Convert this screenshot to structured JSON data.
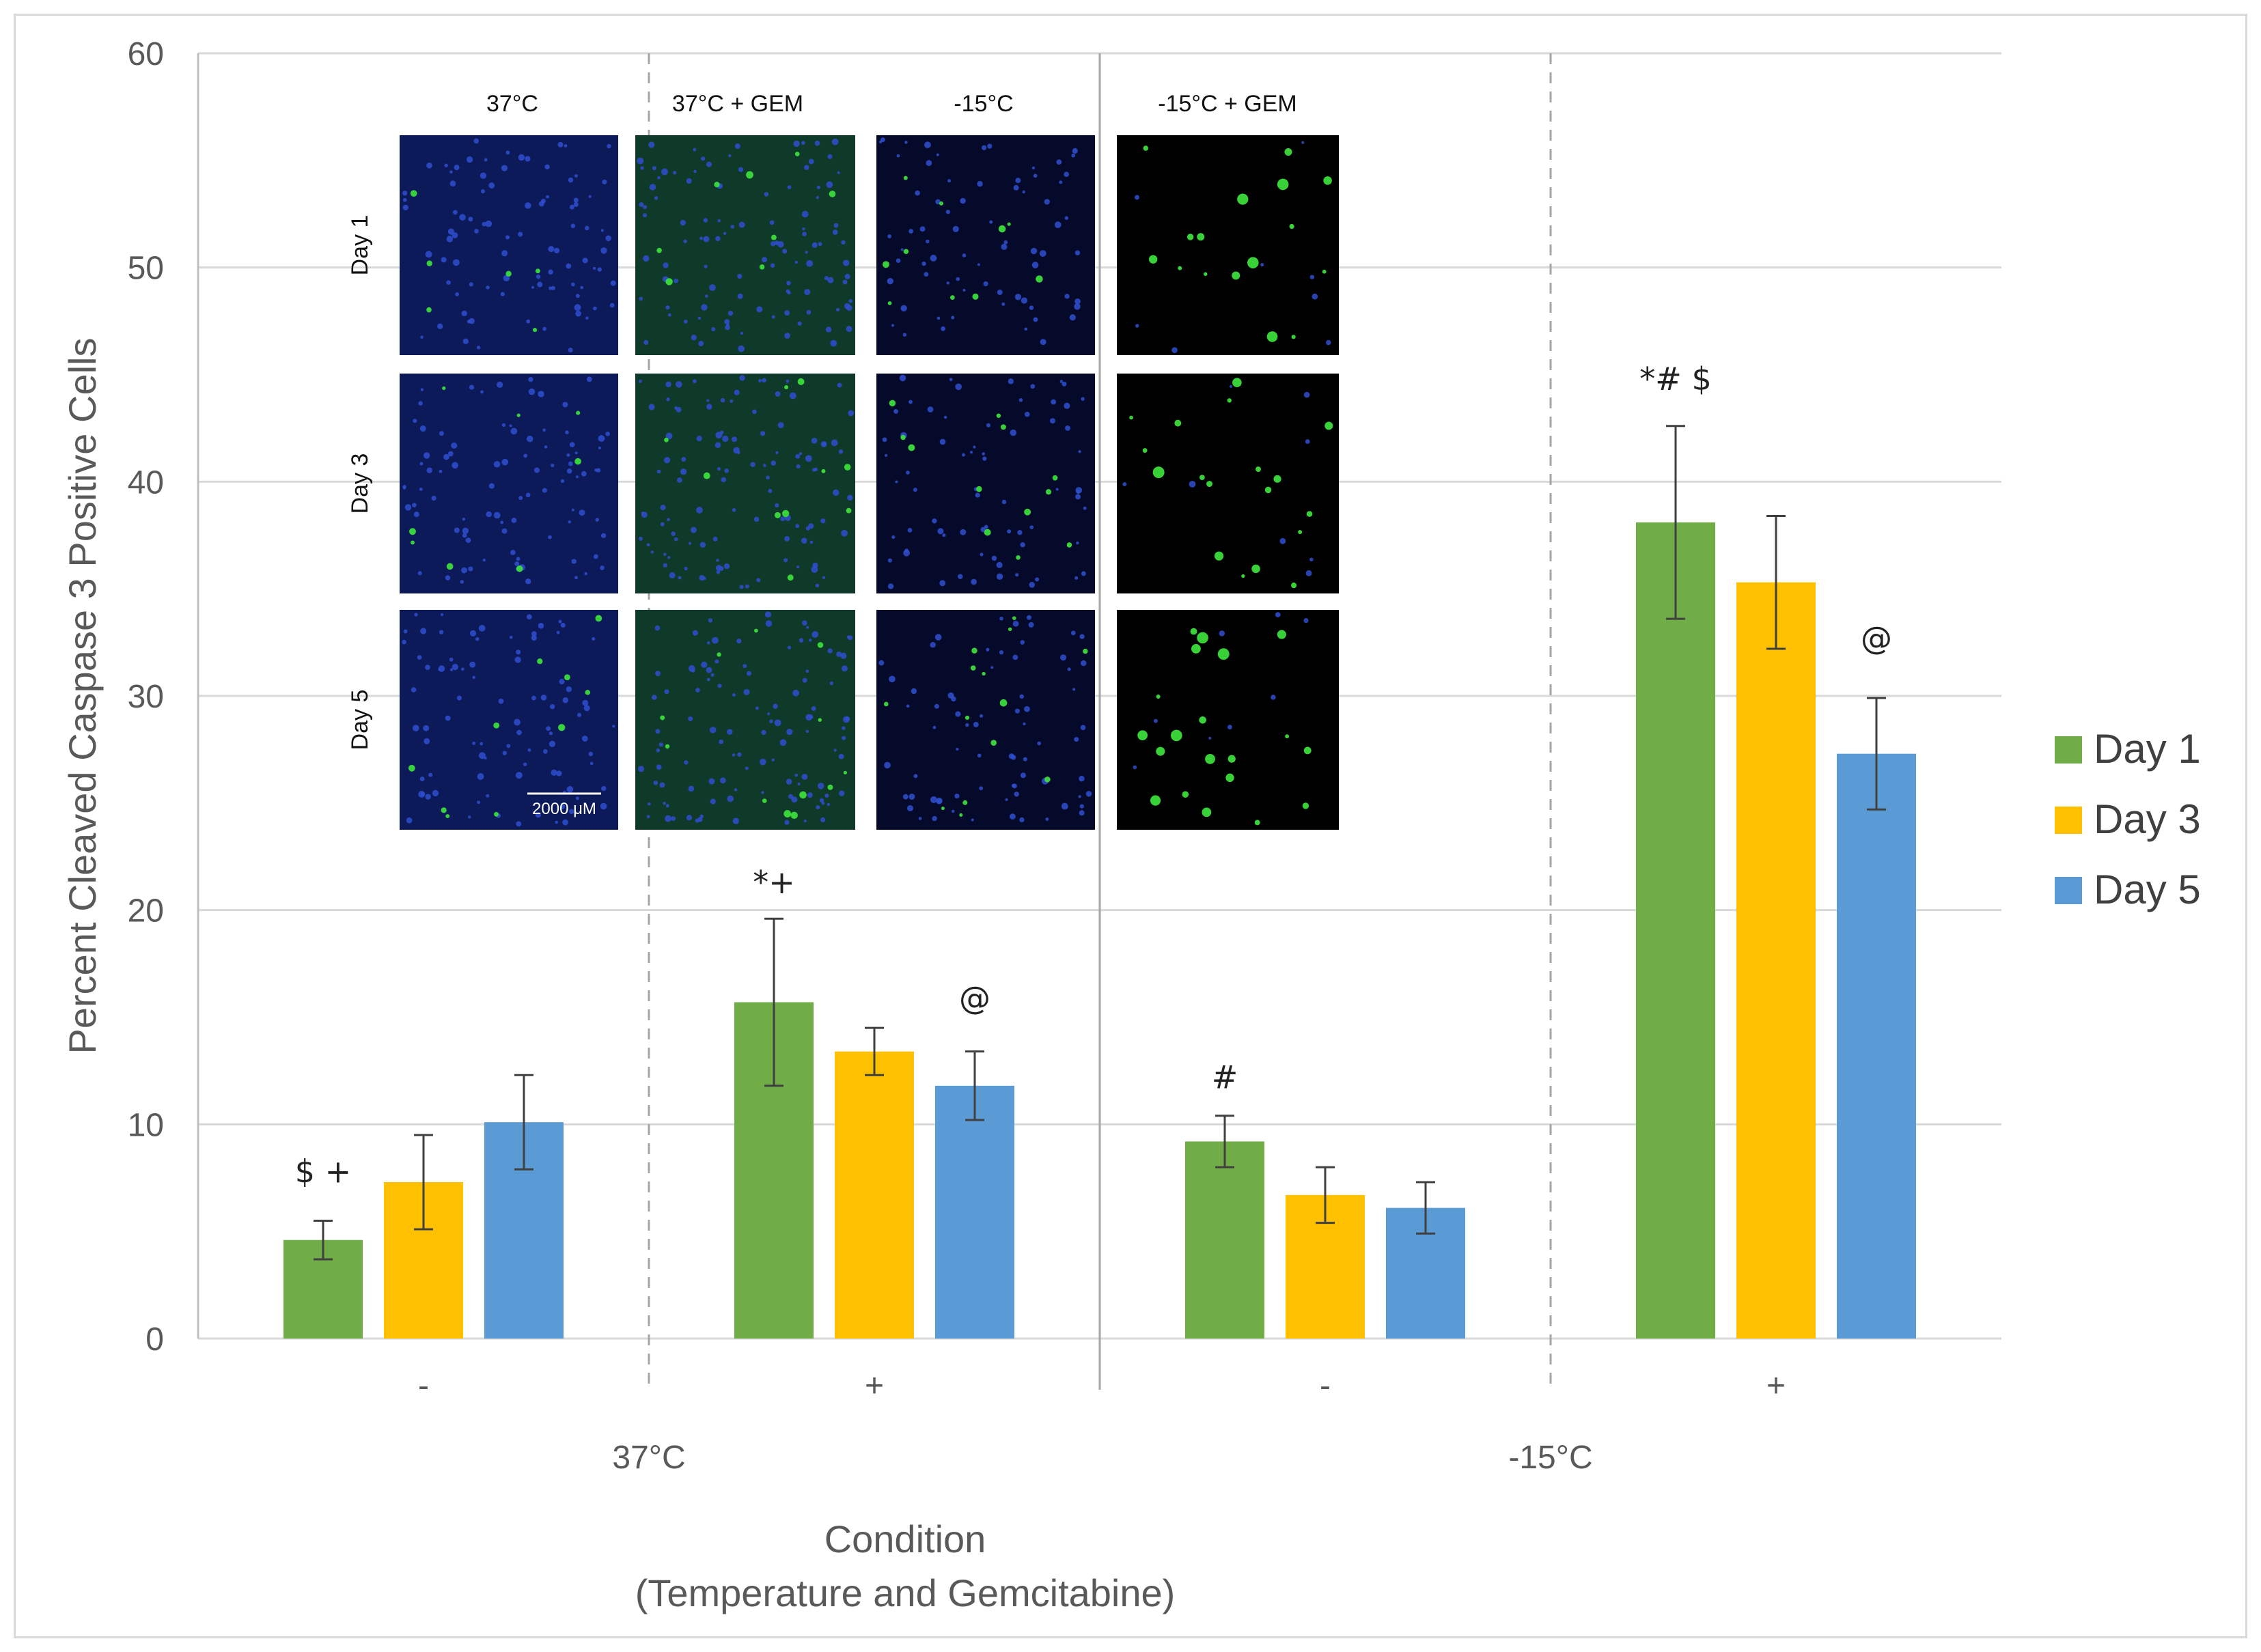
{
  "chart_data": {
    "type": "bar",
    "title": "",
    "ylabel": "Percent Cleaved Caspase 3 Positive Cells",
    "xlabel_line1": "Condition",
    "xlabel_line2": "(Temperature and Gemcitabine)",
    "ylim": [
      0,
      60
    ],
    "yticks": [
      0,
      10,
      20,
      30,
      40,
      50,
      60
    ],
    "grid": true,
    "legend_position": "right",
    "categories": [
      "-",
      "+",
      "-",
      "+"
    ],
    "group_labels": [
      "37°C",
      "-15°C"
    ],
    "series": [
      {
        "name": "Day 1",
        "color": "#70ad47",
        "values": [
          4.6,
          15.7,
          9.2,
          38.1
        ],
        "errors": [
          0.9,
          3.9,
          1.2,
          4.5
        ]
      },
      {
        "name": "Day 3",
        "color": "#ffc000",
        "values": [
          7.3,
          13.4,
          6.7,
          35.3
        ],
        "errors": [
          2.2,
          1.1,
          1.3,
          3.1
        ]
      },
      {
        "name": "Day 5",
        "color": "#5b9bd5",
        "values": [
          10.1,
          11.8,
          6.1,
          27.3
        ],
        "errors": [
          2.2,
          1.6,
          1.2,
          2.6
        ]
      }
    ],
    "annotations": [
      {
        "text": "$ +",
        "category": 0,
        "series": 0,
        "value": 7.8
      },
      {
        "text": "*+",
        "category": 1,
        "series": 0,
        "value": 21.3
      },
      {
        "text": "@",
        "category": 1,
        "series": 2,
        "value": 15.9
      },
      {
        "text": "#",
        "category": 2,
        "series": 0,
        "value": 12.2
      },
      {
        "text": "*# $",
        "category": 3,
        "series": 0,
        "value": 44.8
      },
      {
        "text": "@",
        "category": 3,
        "series": 2,
        "value": 32.7
      }
    ]
  },
  "inset": {
    "column_headers": [
      "37°C",
      "37°C + GEM",
      "-15°C",
      "-15°C + GEM"
    ],
    "row_labels": [
      "Day 1",
      "Day 3",
      "Day 5"
    ],
    "scale_bar_label": "2000 μM"
  }
}
